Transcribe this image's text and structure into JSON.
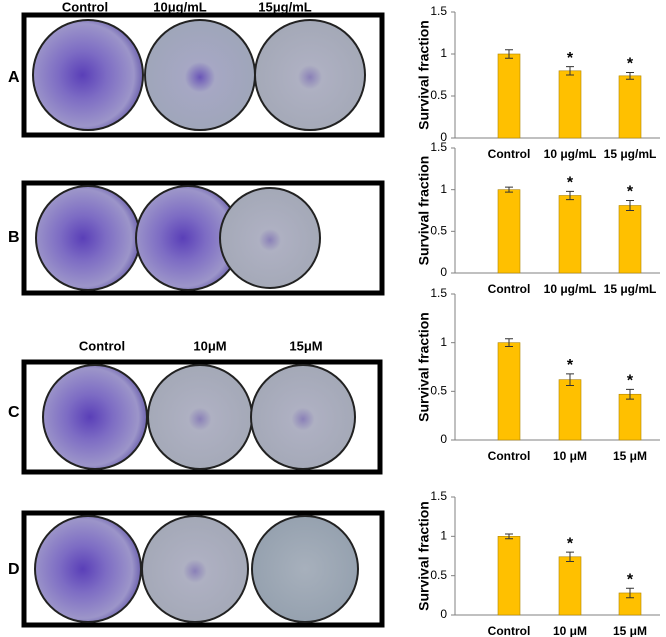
{
  "panels": [
    {
      "label": "A",
      "plate_labels": [
        "Control",
        "10μg/mL",
        "15μg/mL"
      ]
    },
    {
      "label": "B"
    },
    {
      "label": "C",
      "plate_labels": [
        "Control",
        "10μM",
        "15μM"
      ]
    },
    {
      "label": "D"
    }
  ],
  "chart_data": [
    {
      "type": "bar",
      "y_label": "Survival fraction",
      "categories": [
        "Control",
        "10 μg/mL",
        "15 μg/mL"
      ],
      "values": [
        1.0,
        0.8,
        0.74
      ],
      "errors": [
        0.05,
        0.05,
        0.04
      ],
      "significance": [
        null,
        "*",
        "*"
      ],
      "color": "#ffc000",
      "ylim": [
        0,
        1.5
      ],
      "yticks": [
        0,
        0.5,
        1,
        1.5
      ]
    },
    {
      "type": "bar",
      "y_label": "Survival fraction",
      "categories": [
        "Control",
        "10 μg/mL",
        "15 μg/mL"
      ],
      "values": [
        1.0,
        0.93,
        0.81
      ],
      "errors": [
        0.03,
        0.05,
        0.06
      ],
      "significance": [
        null,
        "*",
        "*"
      ],
      "color": "#ffc000",
      "ylim": [
        0,
        1.5
      ],
      "yticks": [
        0,
        0.5,
        1,
        1.5
      ]
    },
    {
      "type": "bar",
      "y_label": "Survival fraction",
      "categories": [
        "Control",
        "10 μM",
        "15 μM"
      ],
      "values": [
        1.0,
        0.62,
        0.47
      ],
      "errors": [
        0.04,
        0.06,
        0.05
      ],
      "significance": [
        null,
        "*",
        "*"
      ],
      "color": "#ffc000",
      "ylim": [
        0,
        1.5
      ],
      "yticks": [
        0,
        0.5,
        1,
        1.5
      ]
    },
    {
      "type": "bar",
      "y_label": "Survival fraction",
      "categories": [
        "Control",
        "10 μM",
        "15 μM"
      ],
      "values": [
        1.0,
        0.74,
        0.28
      ],
      "errors": [
        0.03,
        0.06,
        0.06
      ],
      "significance": [
        null,
        "*",
        "*"
      ],
      "color": "#ffc000",
      "ylim": [
        0,
        1.5
      ],
      "yticks": [
        0,
        0.5,
        1,
        1.5
      ]
    }
  ]
}
